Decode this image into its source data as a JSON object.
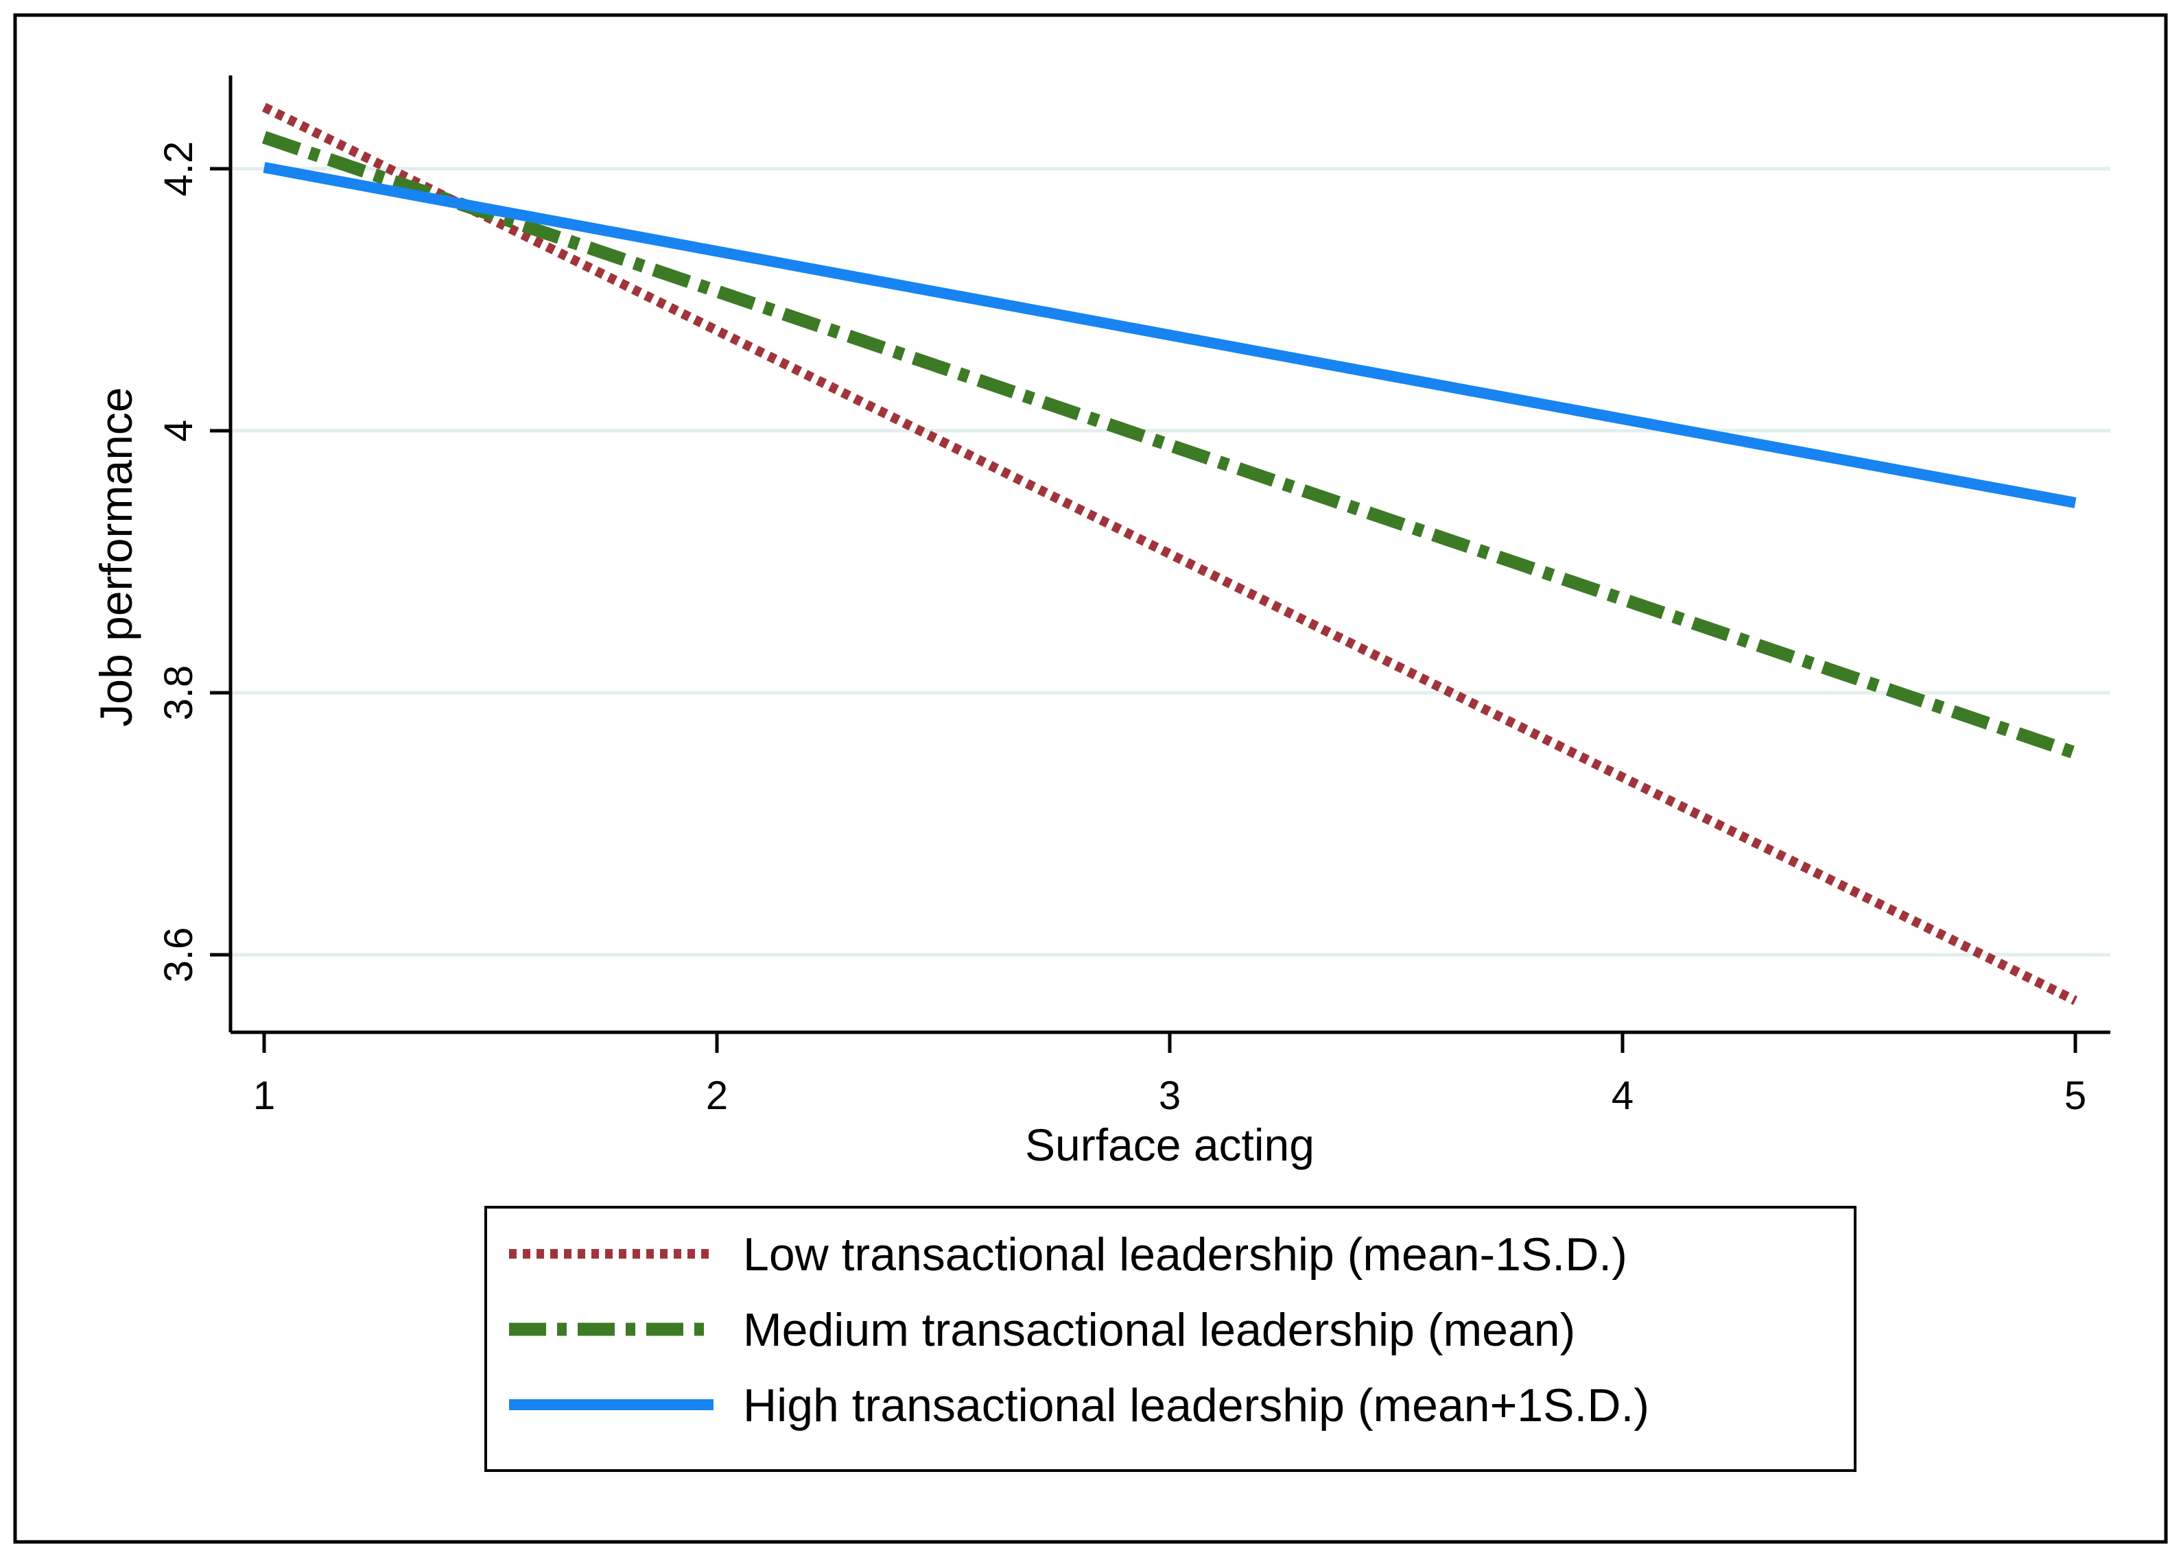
{
  "chart_data": {
    "type": "line",
    "title": "",
    "xlabel": "Surface acting",
    "ylabel": "Job performance",
    "xlim": [
      0.93,
      5.08
    ],
    "ylim": [
      3.54,
      4.27
    ],
    "x_ticks": [
      1,
      2,
      3,
      4,
      5
    ],
    "y_ticks": [
      3.6,
      3.8,
      4.0,
      4.2
    ],
    "y_tick_labels": [
      "3.6",
      "3.8",
      "4",
      "4.2"
    ],
    "grid": "horizontal",
    "legend_position": "bottom",
    "series": [
      {
        "name": "Low transactional leadership (mean-1S.D.)",
        "color": "#a0343c",
        "style": "dotted",
        "x": [
          1,
          5
        ],
        "y": [
          4.247,
          3.565
        ]
      },
      {
        "name": "Medium transactional leadership (mean)",
        "color": "#3d7a25",
        "style": "dash-dot",
        "x": [
          1,
          5
        ],
        "y": [
          4.224,
          3.754
        ]
      },
      {
        "name": "High transactional leadership (mean+1S.D.)",
        "color": "#1784f2",
        "style": "solid",
        "x": [
          1,
          5
        ],
        "y": [
          4.201,
          3.945
        ]
      }
    ]
  }
}
